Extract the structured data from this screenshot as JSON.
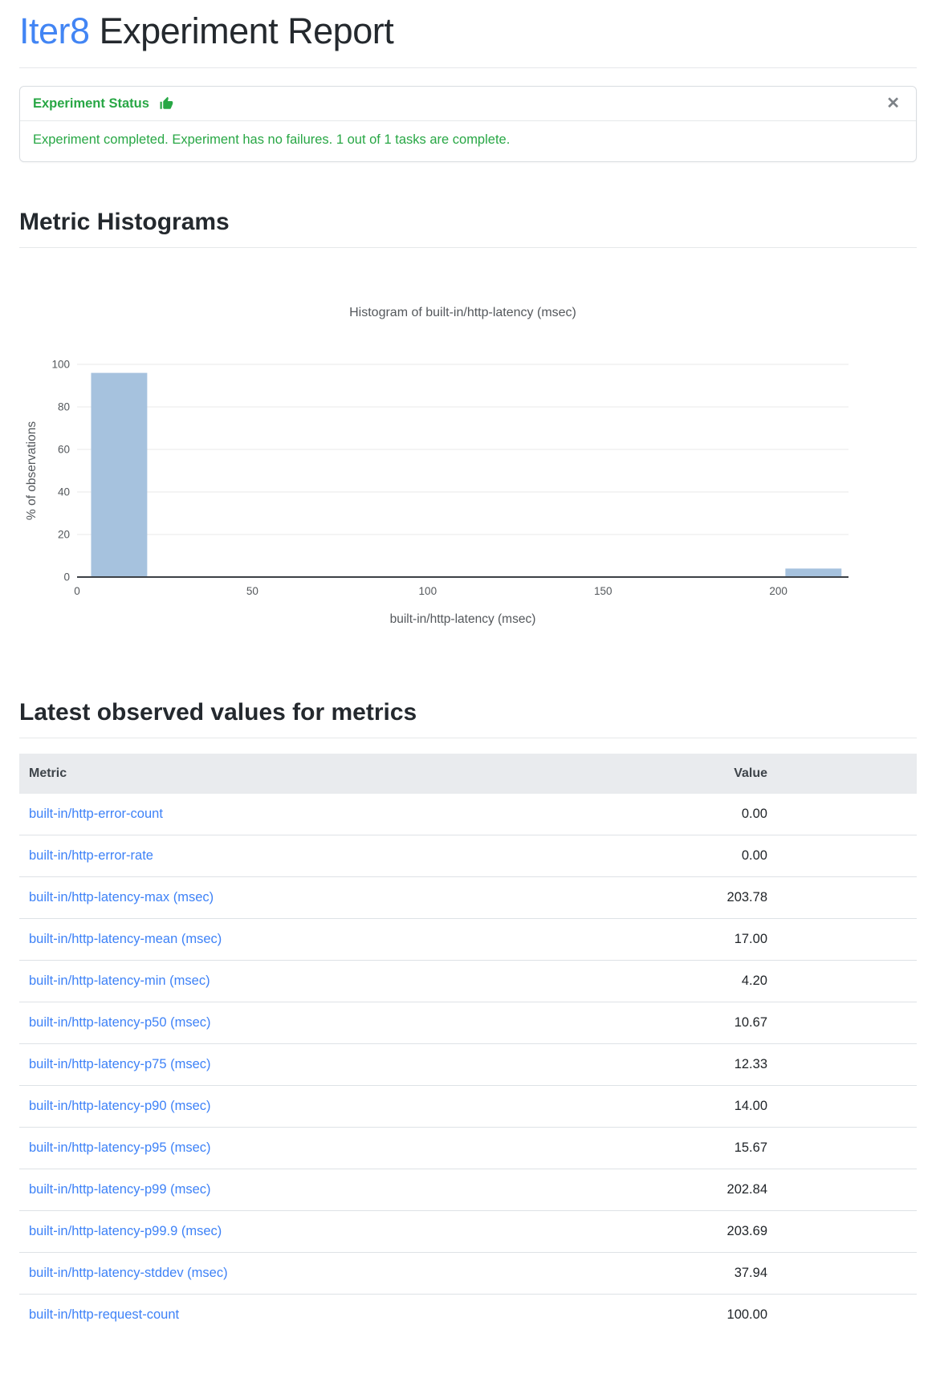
{
  "header": {
    "brand": "Iter8",
    "title_rest": "Experiment Report"
  },
  "status_card": {
    "title": "Experiment Status",
    "icon": "thumbs-up-icon",
    "icon_color": "#28a745",
    "close_symbol": "✕",
    "message": "Experiment completed. Experiment has no failures. 1 out of 1 tasks are complete.",
    "accent_color": "#28a745"
  },
  "sections": {
    "histograms": "Metric Histograms",
    "metrics": "Latest observed values for metrics"
  },
  "chart_data": {
    "type": "bar",
    "subtype": "histogram",
    "title": "Histogram of built-in/http-latency (msec)",
    "xlabel": "built-in/http-latency (msec)",
    "ylabel": "% of observations",
    "xlim": [
      0,
      220
    ],
    "ylim": [
      0,
      100
    ],
    "x_ticks": [
      0,
      50,
      100,
      150,
      200
    ],
    "y_ticks": [
      0,
      20,
      40,
      60,
      80,
      100
    ],
    "grid": "horizontal",
    "legend": "none",
    "bar_color": "#a6c2de",
    "bins": [
      {
        "x0": 4,
        "x1": 20,
        "pct": 96
      },
      {
        "x0": 202,
        "x1": 218,
        "pct": 4
      }
    ]
  },
  "metrics_table": {
    "columns": [
      "Metric",
      "Value"
    ],
    "link_color": "#3e82f7",
    "rows": [
      {
        "metric": "built-in/http-error-count",
        "value": "0.00"
      },
      {
        "metric": "built-in/http-error-rate",
        "value": "0.00"
      },
      {
        "metric": "built-in/http-latency-max (msec)",
        "value": "203.78"
      },
      {
        "metric": "built-in/http-latency-mean (msec)",
        "value": "17.00"
      },
      {
        "metric": "built-in/http-latency-min (msec)",
        "value": "4.20"
      },
      {
        "metric": "built-in/http-latency-p50 (msec)",
        "value": "10.67"
      },
      {
        "metric": "built-in/http-latency-p75 (msec)",
        "value": "12.33"
      },
      {
        "metric": "built-in/http-latency-p90 (msec)",
        "value": "14.00"
      },
      {
        "metric": "built-in/http-latency-p95 (msec)",
        "value": "15.67"
      },
      {
        "metric": "built-in/http-latency-p99 (msec)",
        "value": "202.84"
      },
      {
        "metric": "built-in/http-latency-p99.9 (msec)",
        "value": "203.69"
      },
      {
        "metric": "built-in/http-latency-stddev (msec)",
        "value": "37.94"
      },
      {
        "metric": "built-in/http-request-count",
        "value": "100.00"
      }
    ]
  }
}
